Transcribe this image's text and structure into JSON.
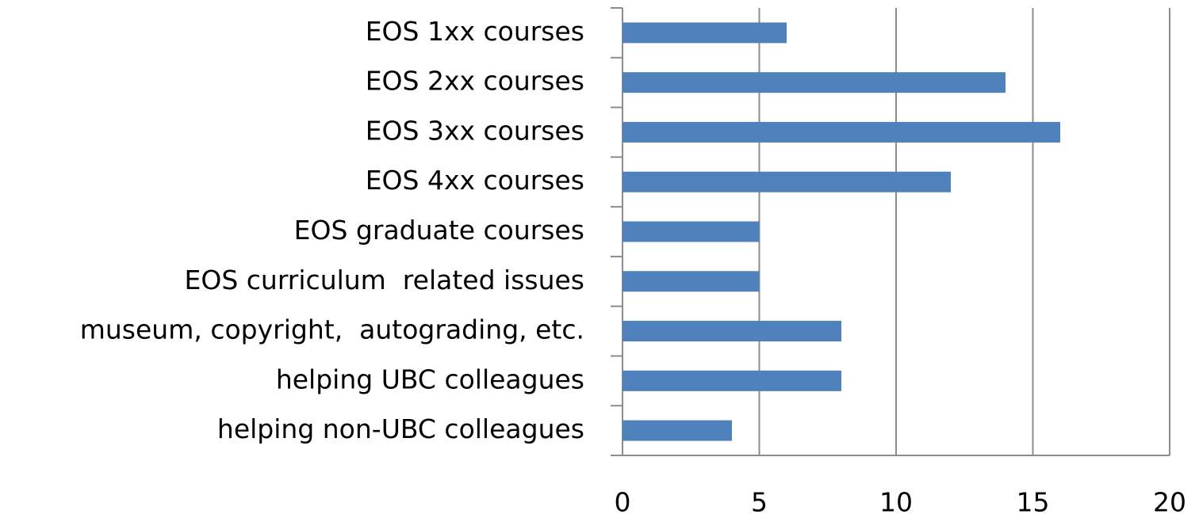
{
  "chart_data": {
    "type": "bar",
    "orientation": "horizontal",
    "categories": [
      "EOS 1xx courses",
      "EOS 2xx courses",
      "EOS 3xx courses",
      "EOS 4xx courses",
      "EOS graduate courses",
      "EOS curriculum  related issues",
      "museum, copyright,  autograding, etc.",
      "helping UBC colleagues",
      "helping non-UBC colleagues"
    ],
    "values": [
      6,
      14,
      16,
      12,
      5,
      5,
      8,
      8,
      4
    ],
    "color": "#4f81bd",
    "xlim": [
      0,
      20
    ],
    "xticks": [
      0,
      5,
      10,
      15,
      20
    ],
    "grid": true
  }
}
